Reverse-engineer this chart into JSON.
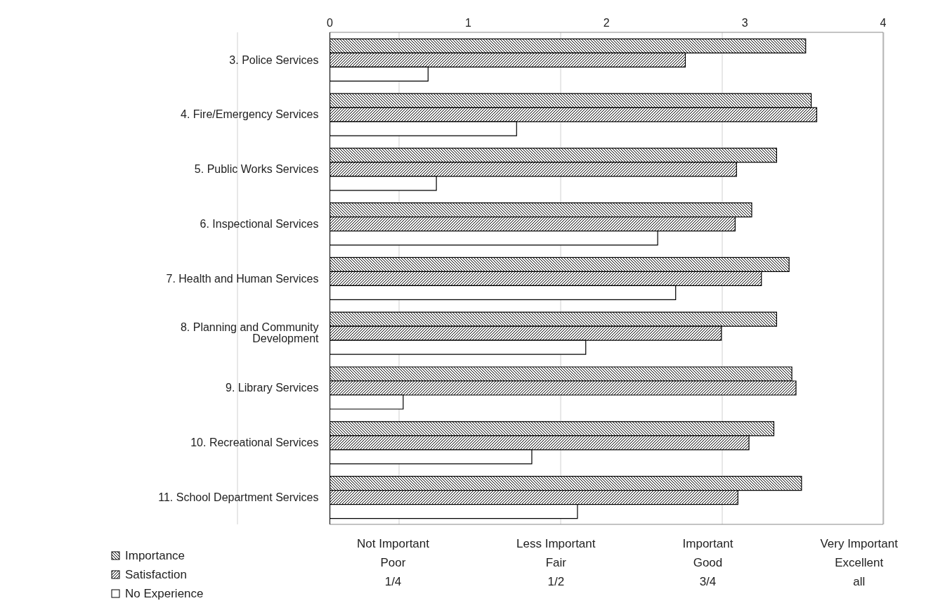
{
  "chart_data": {
    "type": "bar",
    "orientation": "horizontal",
    "categories": [
      "3. Police Services",
      "4. Fire/Emergency Services",
      "5. Public Works Services",
      "6. Inspectional Services",
      "7. Health and Human Services",
      "8. Planning and Community Development",
      "9. Library Services",
      "10. Recreational Services",
      "11. School Department Services"
    ],
    "series": [
      {
        "name": "Importance",
        "color": "#000000",
        "values": [
          3.44,
          3.48,
          3.23,
          3.05,
          3.32,
          3.23,
          3.34,
          3.21,
          3.41
        ]
      },
      {
        "name": "Satisfaction",
        "color": "#000000",
        "values": [
          2.57,
          3.52,
          2.94,
          2.93,
          3.12,
          2.83,
          3.37,
          3.03,
          2.95
        ]
      },
      {
        "name": "No Experience",
        "color": "#000000",
        "values": [
          0.71,
          1.35,
          0.77,
          2.37,
          2.5,
          1.85,
          0.53,
          1.46,
          1.79
        ]
      }
    ],
    "xlim": [
      0,
      4
    ],
    "xticks": [
      0,
      1,
      2,
      3,
      4
    ],
    "grid": "x",
    "legend": "bottom left",
    "annotations": [
      "Not Important\nPoor\n1/4",
      "Less Important\nFair\n1/2",
      "Important\nGood\n3/4",
      "Very Important\nExcellent\nall"
    ]
  }
}
